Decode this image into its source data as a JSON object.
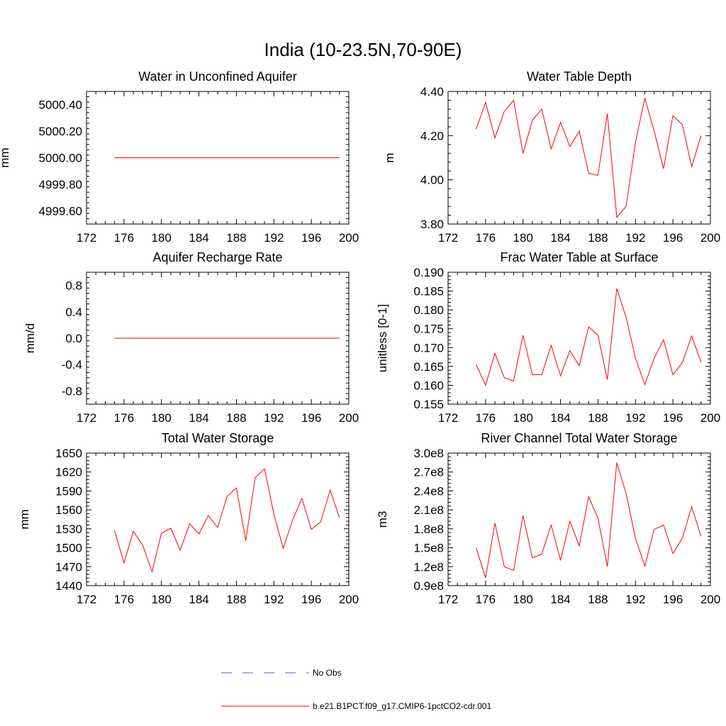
{
  "figure": {
    "title": "India (10-23.5N,70-90E)"
  },
  "colors": {
    "series": "#ff0000",
    "obs": "#5560c0",
    "axis": "#000000"
  },
  "legend": {
    "entries": [
      {
        "label": "No Obs",
        "style": "dashed",
        "color": "#5560c0"
      },
      {
        "label": "b.e21.B1PCT.f09_g17.CMIP6-1pctCO2-cdr.001",
        "style": "solid",
        "color": "#ff0000"
      }
    ]
  },
  "chart_data": [
    {
      "type": "line",
      "title": "Water in Unconfined Aquifer",
      "xlabel": "",
      "ylabel": "mm",
      "xlim": [
        172,
        200
      ],
      "ylim": [
        4999.5,
        5000.5
      ],
      "xticks": [
        172,
        176,
        180,
        184,
        188,
        192,
        196,
        200
      ],
      "xtick_labels": [
        "172",
        "176",
        "180",
        "184",
        "188",
        "192",
        "196",
        "200"
      ],
      "yticks": [
        4999.6,
        4999.8,
        5000.0,
        5000.2,
        5000.4
      ],
      "ytick_labels": [
        "4999.60",
        "4999.80",
        "5000.00",
        "5000.20",
        "5000.40"
      ],
      "x": [
        175,
        176,
        177,
        178,
        179,
        180,
        181,
        182,
        183,
        184,
        185,
        186,
        187,
        188,
        189,
        190,
        191,
        192,
        193,
        194,
        195,
        196,
        197,
        198,
        199
      ],
      "series": [
        {
          "values": [
            5000,
            5000,
            5000,
            5000,
            5000,
            5000,
            5000,
            5000,
            5000,
            5000,
            5000,
            5000,
            5000,
            5000,
            5000,
            5000,
            5000,
            5000,
            5000,
            5000,
            5000,
            5000,
            5000,
            5000,
            5000
          ]
        }
      ]
    },
    {
      "type": "line",
      "title": "Water Table Depth",
      "xlabel": "",
      "ylabel": "m",
      "xlim": [
        172,
        200
      ],
      "ylim": [
        3.8,
        4.4
      ],
      "xticks": [
        172,
        176,
        180,
        184,
        188,
        192,
        196,
        200
      ],
      "xtick_labels": [
        "172",
        "176",
        "180",
        "184",
        "188",
        "192",
        "196",
        "200"
      ],
      "yticks": [
        3.8,
        4.0,
        4.2,
        4.4
      ],
      "ytick_labels": [
        "3.80",
        "4.00",
        "4.20",
        "4.40"
      ],
      "x": [
        175,
        176,
        177,
        178,
        179,
        180,
        181,
        182,
        183,
        184,
        185,
        186,
        187,
        188,
        189,
        190,
        191,
        192,
        193,
        194,
        195,
        196,
        197,
        198,
        199
      ],
      "series": [
        {
          "values": [
            4.23,
            4.35,
            4.19,
            4.31,
            4.36,
            4.12,
            4.27,
            4.32,
            4.14,
            4.26,
            4.15,
            4.22,
            4.03,
            4.02,
            4.3,
            3.83,
            3.88,
            4.17,
            4.37,
            4.22,
            4.05,
            4.29,
            4.25,
            4.06,
            4.2
          ]
        }
      ]
    },
    {
      "type": "line",
      "title": "Aquifer Recharge Rate",
      "xlabel": "",
      "ylabel": "mm/d",
      "xlim": [
        172,
        200
      ],
      "ylim": [
        -1.0,
        1.0
      ],
      "xticks": [
        172,
        176,
        180,
        184,
        188,
        192,
        196,
        200
      ],
      "xtick_labels": [
        "172",
        "176",
        "180",
        "184",
        "188",
        "192",
        "196",
        "200"
      ],
      "yticks": [
        -0.8,
        -0.4,
        0.0,
        0.4,
        0.8
      ],
      "ytick_labels": [
        "-0.8",
        "-0.4",
        "0.0",
        "0.4",
        "0.8"
      ],
      "x": [
        175,
        176,
        177,
        178,
        179,
        180,
        181,
        182,
        183,
        184,
        185,
        186,
        187,
        188,
        189,
        190,
        191,
        192,
        193,
        194,
        195,
        196,
        197,
        198,
        199
      ],
      "series": [
        {
          "values": [
            0,
            0,
            0,
            0,
            0,
            0,
            0,
            0,
            0,
            0,
            0,
            0,
            0,
            0,
            0,
            0,
            0,
            0,
            0,
            0,
            0,
            0,
            0,
            0,
            0
          ]
        }
      ]
    },
    {
      "type": "line",
      "title": "Frac Water Table at Surface",
      "xlabel": "",
      "ylabel": "unitless [0-1]",
      "xlim": [
        172,
        200
      ],
      "ylim": [
        0.155,
        0.19
      ],
      "xticks": [
        172,
        176,
        180,
        184,
        188,
        192,
        196,
        200
      ],
      "xtick_labels": [
        "172",
        "176",
        "180",
        "184",
        "188",
        "192",
        "196",
        "200"
      ],
      "yticks": [
        0.155,
        0.16,
        0.165,
        0.17,
        0.175,
        0.18,
        0.185,
        0.19
      ],
      "ytick_labels": [
        "0.155",
        "0.160",
        "0.165",
        "0.170",
        "0.175",
        "0.180",
        "0.185",
        "0.190"
      ],
      "x": [
        175,
        176,
        177,
        178,
        179,
        180,
        181,
        182,
        183,
        184,
        185,
        186,
        187,
        188,
        189,
        190,
        191,
        192,
        193,
        194,
        195,
        196,
        197,
        198,
        199
      ],
      "series": [
        {
          "values": [
            0.1655,
            0.16,
            0.1685,
            0.162,
            0.1612,
            0.1733,
            0.1628,
            0.1628,
            0.1706,
            0.1625,
            0.1692,
            0.1652,
            0.1755,
            0.1733,
            0.1615,
            0.1857,
            0.178,
            0.1672,
            0.1602,
            0.1672,
            0.1721,
            0.1628,
            0.166,
            0.1731,
            0.1661
          ]
        }
      ]
    },
    {
      "type": "line",
      "title": "Total Water Storage",
      "xlabel": "",
      "ylabel": "mm",
      "xlim": [
        172,
        200
      ],
      "ylim": [
        1440,
        1650
      ],
      "xticks": [
        172,
        176,
        180,
        184,
        188,
        192,
        196,
        200
      ],
      "xtick_labels": [
        "172",
        "176",
        "180",
        "184",
        "188",
        "192",
        "196",
        "200"
      ],
      "yticks": [
        1440,
        1470,
        1500,
        1530,
        1560,
        1590,
        1620,
        1650
      ],
      "ytick_labels": [
        "1440",
        "1470",
        "1500",
        "1530",
        "1560",
        "1590",
        "1620",
        "1650"
      ],
      "x": [
        175,
        176,
        177,
        178,
        179,
        180,
        181,
        182,
        183,
        184,
        185,
        186,
        187,
        188,
        189,
        190,
        191,
        192,
        193,
        194,
        195,
        196,
        197,
        198,
        199
      ],
      "series": [
        {
          "values": [
            1527,
            1476,
            1526,
            1504,
            1462,
            1523,
            1531,
            1496,
            1538,
            1522,
            1551,
            1532,
            1581,
            1595,
            1511,
            1611,
            1625,
            1553,
            1499,
            1544,
            1578,
            1529,
            1541,
            1591,
            1548
          ]
        }
      ]
    },
    {
      "type": "line",
      "title": "River Channel Total Water Storage",
      "xlabel": "",
      "ylabel": "m3",
      "xlim": [
        172,
        200
      ],
      "ylim": [
        90000000.0,
        300000000.0
      ],
      "xticks": [
        172,
        176,
        180,
        184,
        188,
        192,
        196,
        200
      ],
      "xtick_labels": [
        "172",
        "176",
        "180",
        "184",
        "188",
        "192",
        "196",
        "200"
      ],
      "yticks": [
        90000000.0,
        120000000.0,
        150000000.0,
        180000000.0,
        210000000.0,
        240000000.0,
        270000000.0,
        300000000.0
      ],
      "ytick_labels": [
        "0.9e8",
        "1.2e8",
        "1.5e8",
        "1.8e8",
        "2.1e8",
        "2.4e8",
        "2.7e8",
        "3.0e8"
      ],
      "x": [
        175,
        176,
        177,
        178,
        179,
        180,
        181,
        182,
        183,
        184,
        185,
        186,
        187,
        188,
        189,
        190,
        191,
        192,
        193,
        194,
        195,
        196,
        197,
        198,
        199
      ],
      "series": [
        {
          "values": [
            150000000.0,
            102000000.0,
            189000000.0,
            120000000.0,
            114000000.0,
            201000000.0,
            134000000.0,
            140000000.0,
            186000000.0,
            130000000.0,
            192000000.0,
            153000000.0,
            231000000.0,
            197000000.0,
            120000000.0,
            285000000.0,
            236000000.0,
            165000000.0,
            121000000.0,
            179000000.0,
            186000000.0,
            141000000.0,
            165000000.0,
            215000000.0,
            168000000.0
          ]
        }
      ]
    }
  ]
}
